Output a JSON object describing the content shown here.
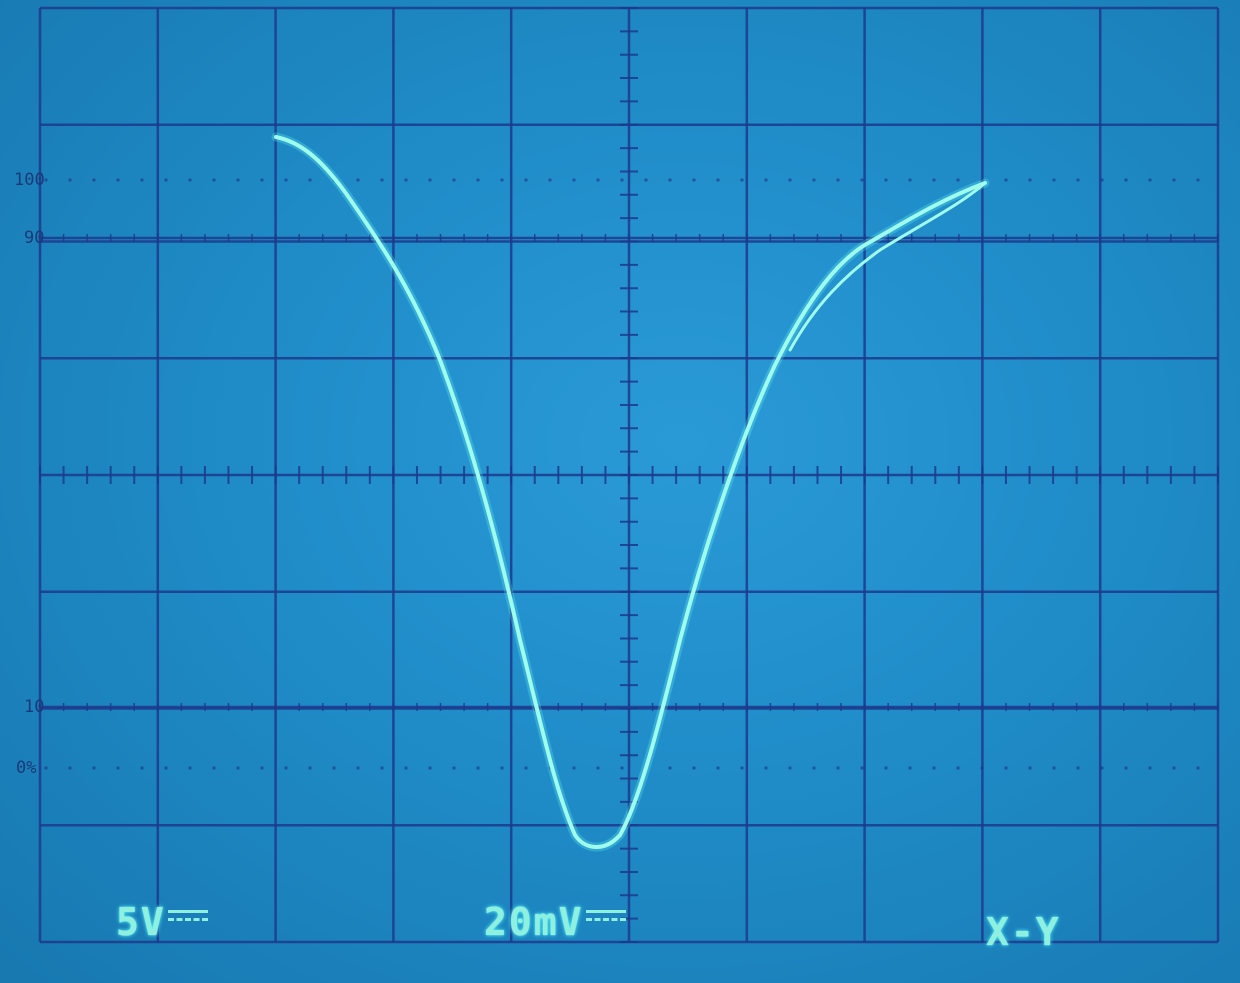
{
  "readouts": {
    "ch1_volts_div": "5V",
    "ch2_volts_div": "20mV",
    "mode": "X-Y"
  },
  "graticule_labels": {
    "l100": "100",
    "l90": "90",
    "l10": "10",
    "l0": "0%"
  },
  "colors": {
    "screen": "#1f8cc8",
    "grid": "#1c3a8c",
    "trace": "#8ff8e8"
  }
}
